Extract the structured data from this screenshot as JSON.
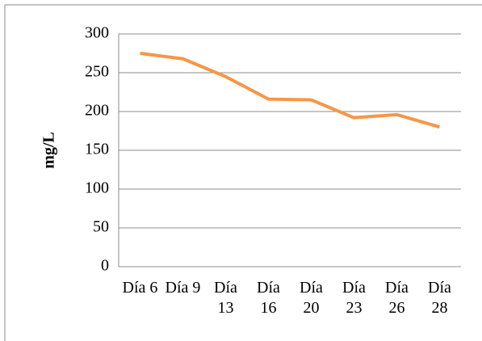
{
  "chart_data": {
    "type": "line",
    "y_label": "mg/L",
    "categories": [
      "Día 6",
      "Día 9",
      "Día 13",
      "Día 16",
      "Día 20",
      "Día 23",
      "Día 26",
      "Día 28"
    ],
    "series": [
      {
        "name": "mg/L",
        "color": "#f79646",
        "values": [
          275,
          268,
          245,
          216,
          215,
          192,
          196,
          180
        ]
      }
    ],
    "ylim": [
      0,
      300
    ],
    "yticks": [
      0,
      50,
      100,
      150,
      200,
      250,
      300
    ],
    "grid": true
  }
}
